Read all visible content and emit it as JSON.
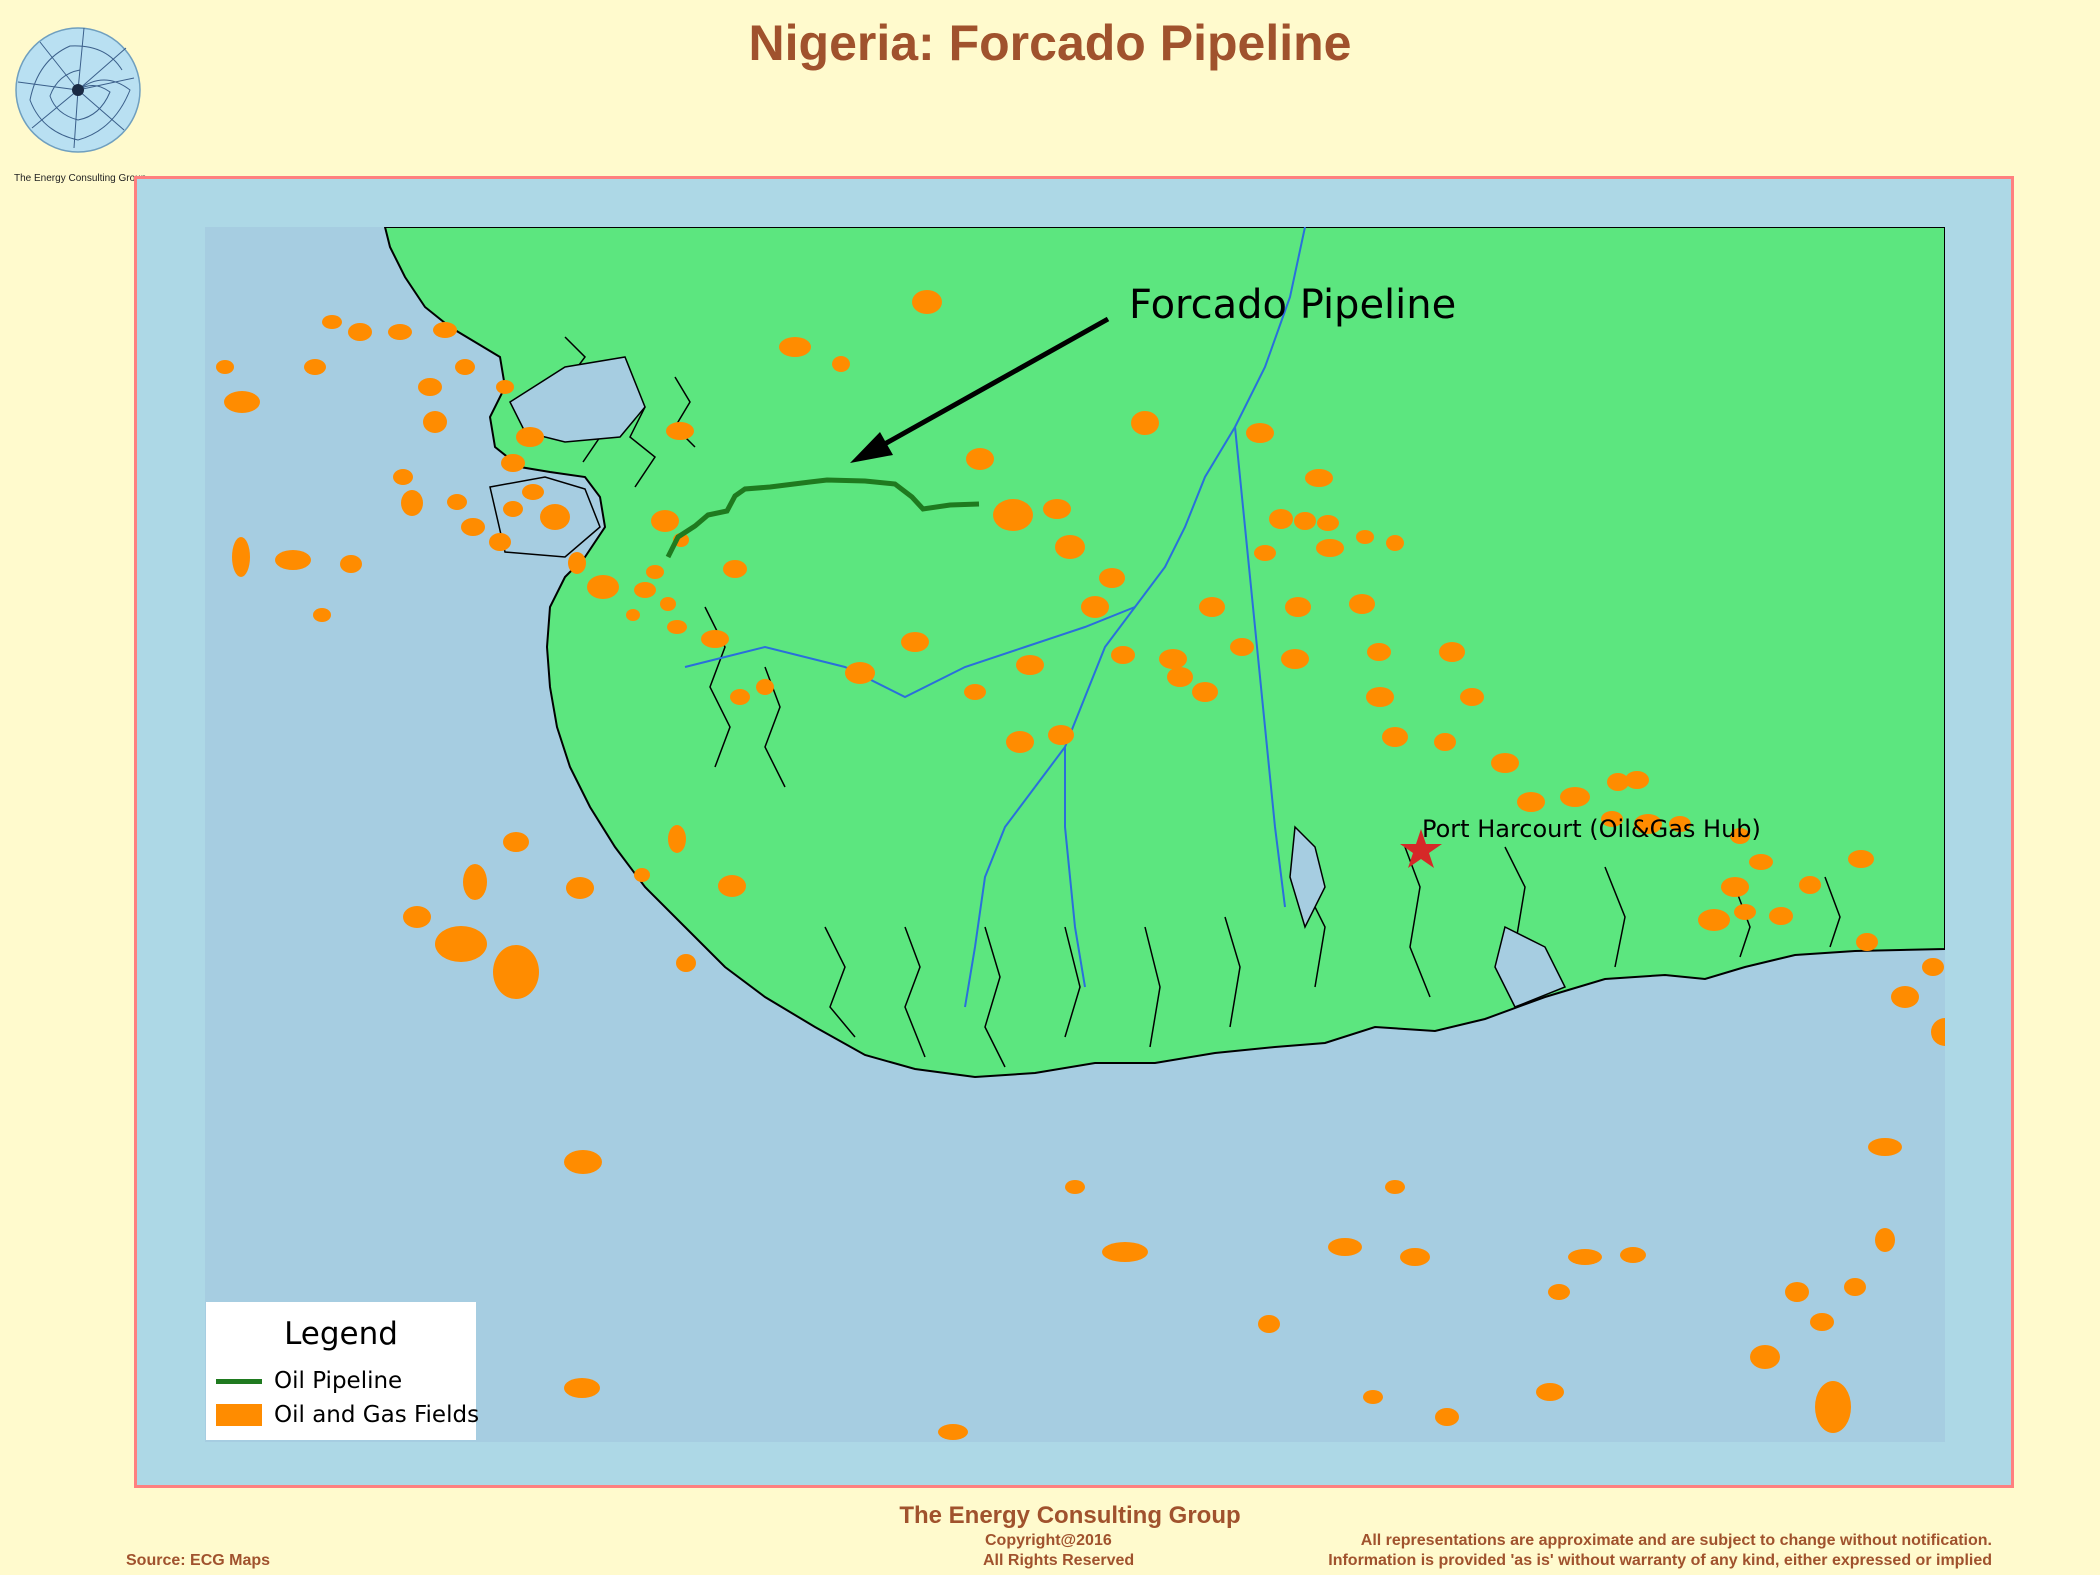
{
  "title": "Nigeria: Forcado Pipeline",
  "logo": {
    "caption": "The Energy Consulting Group"
  },
  "map": {
    "annotation": "Forcado Pipeline",
    "city_label": "Port Harcourt (Oil&Gas Hub)",
    "colors": {
      "sea": "#a6cde1",
      "land": "#5ce67f",
      "fields": "#ff8c00",
      "pipeline": "#1f7a1f",
      "rivers": "#2a6fdb",
      "border": "#ff7f7f"
    }
  },
  "legend": {
    "title": "Legend",
    "items": [
      {
        "label": "Oil Pipeline",
        "icon": "line-swatch"
      },
      {
        "label": "Oil and Gas Fields",
        "icon": "fill-swatch"
      }
    ]
  },
  "footer": {
    "org": "The Energy Consulting Group",
    "copyright": "Copyright@2016",
    "rights": "All Rights Reserved",
    "source": "Source: ECG Maps",
    "disclaimer1": "All representations are approximate and are subject to change without notification.",
    "disclaimer2": "Information is provided 'as is' without warranty of any kind, either expressed or implied"
  }
}
